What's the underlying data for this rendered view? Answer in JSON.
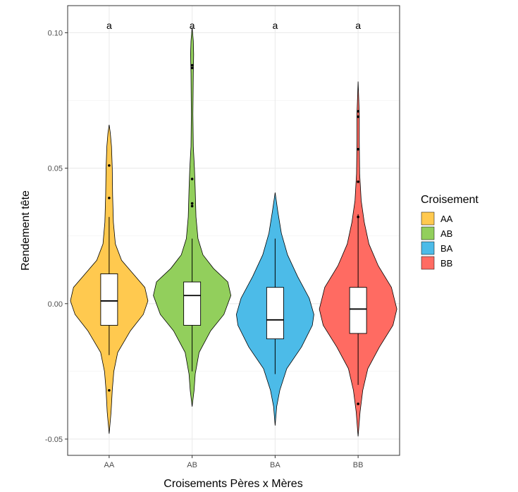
{
  "chart_data": {
    "type": "violin",
    "xlabel": "Croisements Pères x Mères",
    "ylabel": "Rendement tête",
    "ylim": [
      -0.056,
      0.11
    ],
    "yticks": [
      -0.05,
      0.0,
      0.05,
      0.1
    ],
    "ytick_labels": [
      "-0.05",
      "0.00",
      "0.05",
      "0.10"
    ],
    "grid": true,
    "legend": {
      "title": "Croisement",
      "placement": "right",
      "entries": [
        "AA",
        "AB",
        "BA",
        "BB"
      ]
    },
    "colors": {
      "AA": "#FFC94F",
      "AB": "#92CF5C",
      "BA": "#4CBBE8",
      "BB": "#FF6B62"
    },
    "categories": [
      "AA",
      "AB",
      "BA",
      "BB"
    ],
    "groups": [
      {
        "name": "AA",
        "significance": "a",
        "box": {
          "median": 0.001,
          "q1": -0.008,
          "q3": 0.011,
          "whisker_low": -0.019,
          "whisker_high": 0.032
        },
        "violin": {
          "min": -0.048,
          "max": 0.066
        },
        "outliers": [
          0.051,
          0.039,
          -0.032
        ]
      },
      {
        "name": "AB",
        "significance": "a",
        "box": {
          "median": 0.003,
          "q1": -0.008,
          "q3": 0.008,
          "whisker_low": -0.025,
          "whisker_high": 0.024
        },
        "violin": {
          "min": -0.038,
          "max": 0.102
        },
        "outliers": [
          0.088,
          0.087,
          0.046,
          0.037,
          0.036
        ]
      },
      {
        "name": "BA",
        "significance": "a",
        "box": {
          "median": -0.006,
          "q1": -0.013,
          "q3": 0.006,
          "whisker_low": -0.026,
          "whisker_high": 0.024
        },
        "violin": {
          "min": -0.045,
          "max": 0.041
        },
        "outliers": []
      },
      {
        "name": "BB",
        "significance": "a",
        "box": {
          "median": -0.002,
          "q1": -0.011,
          "q3": 0.006,
          "whisker_low": -0.03,
          "whisker_high": 0.033
        },
        "violin": {
          "min": -0.049,
          "max": 0.082
        },
        "outliers": [
          0.071,
          0.069,
          0.057,
          0.045,
          0.032,
          -0.037
        ]
      }
    ]
  }
}
